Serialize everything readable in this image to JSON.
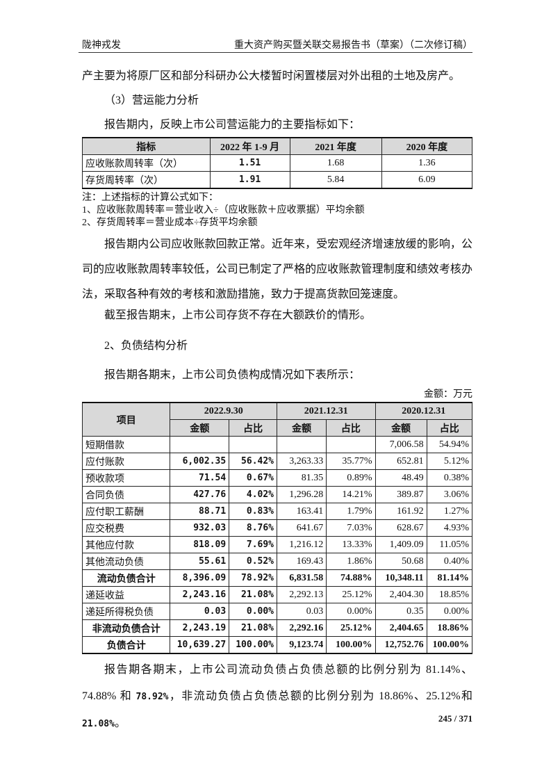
{
  "header": {
    "left": "陇神戎发",
    "right": "重大资产购买暨关联交易报告书（草案）（二次修订稿）"
  },
  "paragraphs": [
    "产主要为将原厂区和部分科研办公大楼暂时闲置楼层对外出租的土地及房产。",
    "（3）营运能力分析",
    "报告期内，反映上市公司营运能力的主要指标如下："
  ],
  "table1": {
    "header": [
      "指标",
      "2022 年 1-9 月",
      "2021 年度",
      "2020 年度"
    ],
    "rows": [
      [
        "应收账款周转率（次）",
        "1.51",
        "1.68",
        "1.36"
      ],
      [
        "存货周转率（次）",
        "1.91",
        "5.84",
        "6.09"
      ]
    ]
  },
  "notes": [
    "注：上述指标的计算公式如下：",
    "1、应收账款周转率＝营业收入÷（应收账款＋应收票据）平均余额",
    "2、存货周转率＝营业成本÷存货平均余额"
  ],
  "paragraphs2": [
    "报告期内公司应收账款回款正常。近年来，受宏观经济增速放缓的影响，公司的应收账款周转率较低，公司已制定了严格的应收账款管理制度和绩效考核办法，采取各种有效的考核和激励措施，致力于提高货款回笼速度。",
    "截至报告期末，上市公司存货不存在大额跌价的情形。",
    "2、负债结构分析",
    "报告期各期末，上市公司负债构成情况如下表所示："
  ],
  "unit": "金额：万元",
  "table2": {
    "item": "项目",
    "periods": [
      "2022.9.30",
      "2021.12.31",
      "2020.12.31"
    ],
    "sub": [
      "金额",
      "占比",
      "金额",
      "占比",
      "金额",
      "占比"
    ],
    "rows": [
      [
        "短期借款",
        null,
        null,
        null,
        null,
        "7,006.58",
        "54.94%"
      ],
      [
        "应付账款",
        "6,002.35",
        "56.42%",
        "3,263.33",
        "35.77%",
        "652.81",
        "5.12%"
      ],
      [
        "预收款项",
        "71.54",
        "0.67%",
        "81.35",
        "0.89%",
        "48.49",
        "0.38%"
      ],
      [
        "合同负债",
        "427.76",
        "4.02%",
        "1,296.28",
        "14.21%",
        "389.87",
        "3.06%"
      ],
      [
        "应付职工薪酬",
        "88.71",
        "0.83%",
        "163.41",
        "1.79%",
        "161.92",
        "1.27%"
      ],
      [
        "应交税费",
        "932.03",
        "8.76%",
        "641.67",
        "7.03%",
        "628.67",
        "4.93%"
      ],
      [
        "其他应付款",
        "818.09",
        "7.69%",
        "1,216.12",
        "13.33%",
        "1,409.09",
        "11.05%"
      ],
      [
        "其他流动负债",
        "55.61",
        "0.52%",
        "169.43",
        "1.86%",
        "50.68",
        "0.40%"
      ],
      [
        "流动负债合计",
        "8,396.09",
        "78.92%",
        "6,831.58",
        "74.88%",
        "10,348.11",
        "81.14%"
      ],
      [
        "递延收益",
        "2,243.16",
        "21.08%",
        "2,292.13",
        "25.12%",
        "2,404.30",
        "18.85%"
      ],
      [
        "递延所得税负债",
        "0.03",
        "0.00%",
        "0.03",
        "0.00%",
        "0.35",
        "0.00%"
      ],
      [
        "非流动负债合计",
        "2,243.19",
        "21.08%",
        "2,292.16",
        "25.12%",
        "2,404.65",
        "18.86%"
      ],
      [
        "负债合计",
        "10,639.27",
        "100.00%",
        "9,123.74",
        "100.00%",
        "12,752.76",
        "100.00%"
      ]
    ]
  },
  "conclusion": [
    "报告期各期末，上市公司流动负债占负债总额的比例分别为 81.14%、74.88% 和 ",
    "78.92%",
    "，非流动负债占负债总额的比例分别为 18.86%、25.12%和 ",
    "21.08%",
    "。"
  ],
  "footer": "245 / 371"
}
